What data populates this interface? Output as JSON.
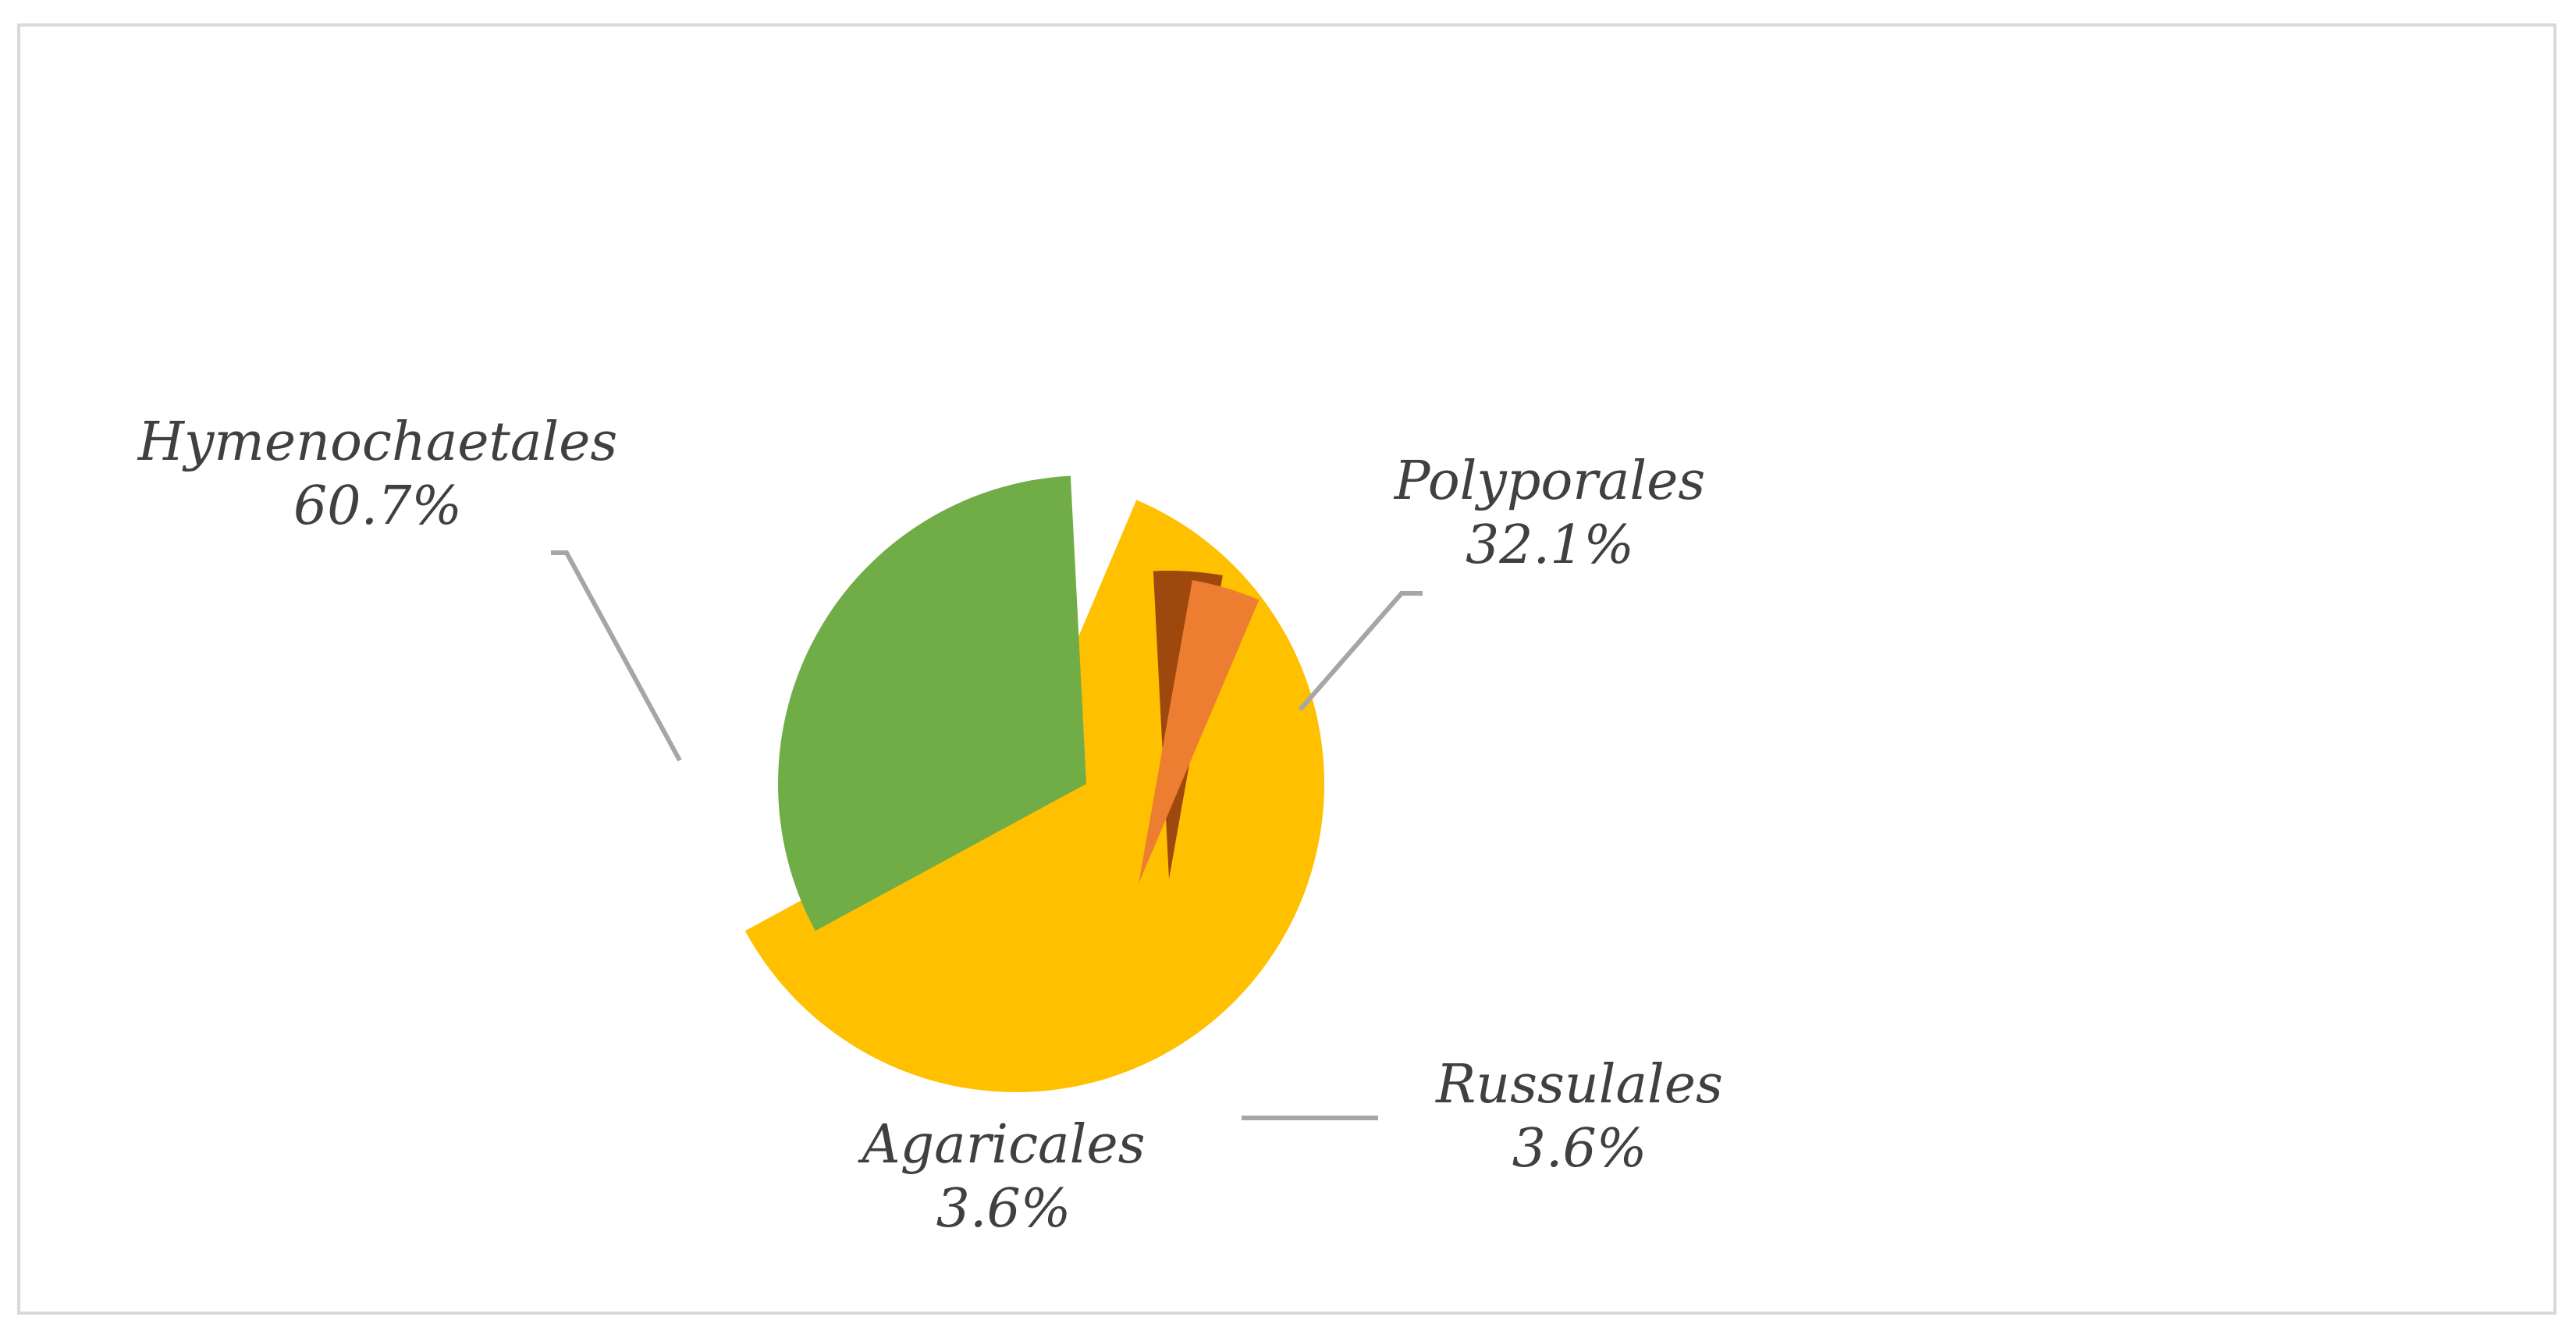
{
  "chart_data": {
    "type": "pie",
    "exploded": true,
    "slices": [
      {
        "label": "Hymenochaetales",
        "value": 60.7,
        "value_label": "60.7%",
        "color": "#FFC000"
      },
      {
        "label": "Polyporales",
        "value": 32.1,
        "value_label": "32.1%",
        "color": "#70AD47"
      },
      {
        "label": "Russulales",
        "value": 3.6,
        "value_label": "3.6%",
        "color": "#9E480E"
      },
      {
        "label": "Agaricales",
        "value": 3.6,
        "value_label": "3.6%",
        "color": "#ED7D31"
      }
    ],
    "legend": "none",
    "data_labels": "outside with leader lines"
  }
}
